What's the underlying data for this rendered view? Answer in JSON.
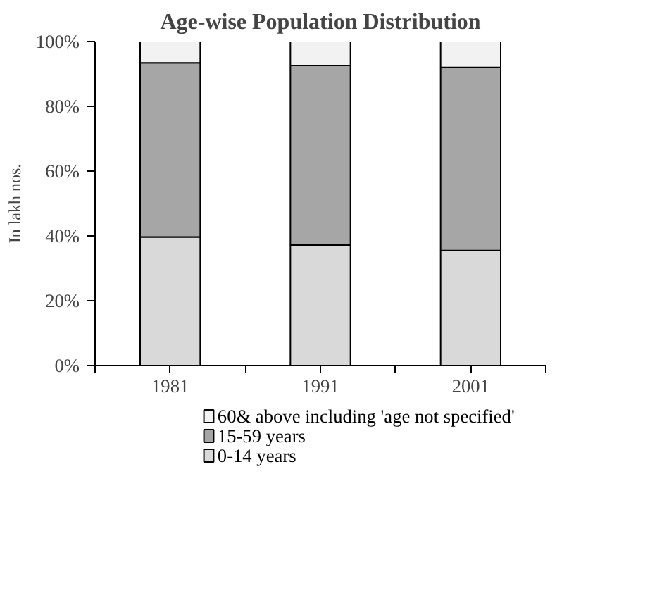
{
  "chart_data": {
    "type": "bar",
    "title": "Age-wise Population Distribution",
    "ylabel": "In lakh nos.",
    "categories": [
      "1981",
      "1991",
      "2001"
    ],
    "stacked": true,
    "series": [
      {
        "name": "0-14 years",
        "color": "#d9d9d9",
        "values": [
          39.7,
          37.2,
          35.5
        ]
      },
      {
        "name": "15-59 years",
        "color": "#a6a6a6",
        "values": [
          53.7,
          55.4,
          56.5
        ]
      },
      {
        "name": "60& above including 'age not specified'",
        "color": "#f2f2f2",
        "values": [
          6.6,
          7.4,
          8.0
        ]
      }
    ],
    "ylim": [
      0,
      100
    ],
    "yticks": [
      {
        "value": 0,
        "label": "0%"
      },
      {
        "value": 20,
        "label": "20%"
      },
      {
        "value": 40,
        "label": "40%"
      },
      {
        "value": 60,
        "label": "60%"
      },
      {
        "value": 80,
        "label": "80%"
      },
      {
        "value": 100,
        "label": "100%"
      }
    ],
    "grid": false,
    "legend": "bottom"
  }
}
